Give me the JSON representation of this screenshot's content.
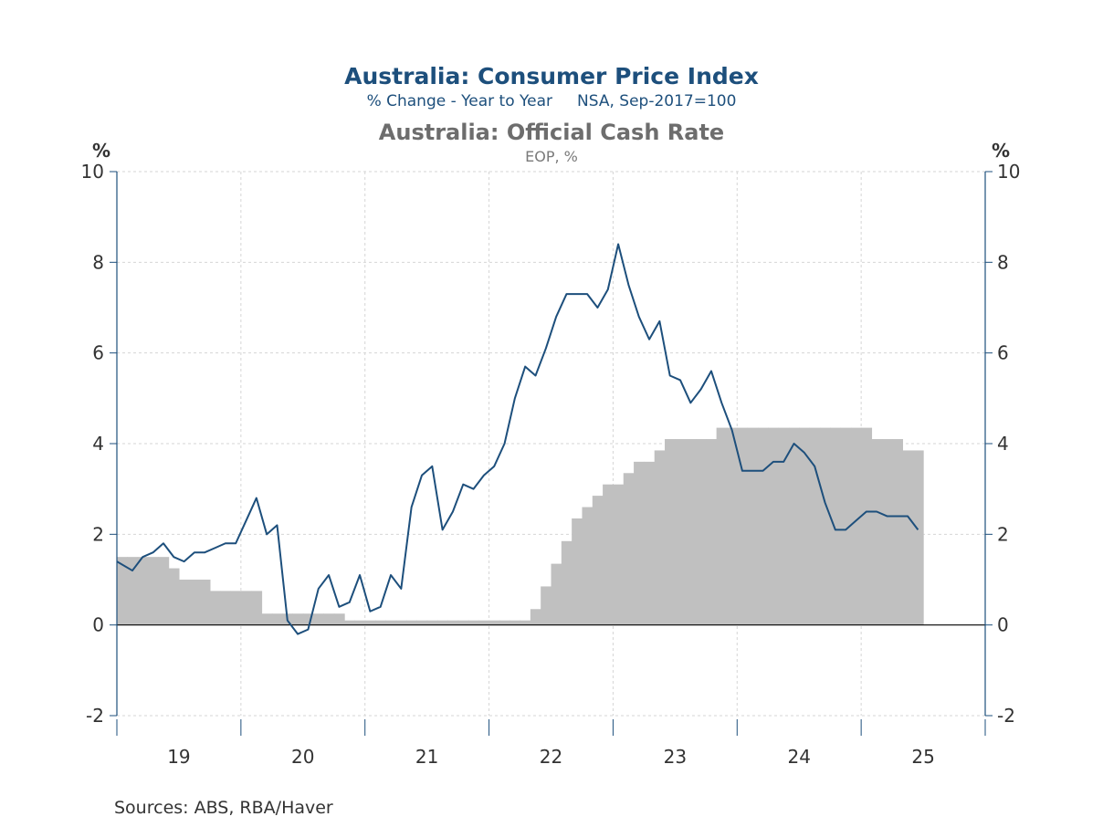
{
  "chart_data": {
    "type": "line",
    "title": "Australia: Consumer Price Index",
    "subtitle": "% Change - Year to Year     NSA, Sep-2017=100",
    "title2": "Australia: Official Cash Rate",
    "subtitle2": "EOP, %",
    "left_unit": "%",
    "right_unit": "%",
    "source": "Sources:  ABS, RBA/Haver",
    "ylim": [
      -2,
      10
    ],
    "yticks": [
      "-2",
      "0",
      "2",
      "4",
      "6",
      "8",
      "10"
    ],
    "x_categories": [
      "19",
      "20",
      "21",
      "22",
      "23",
      "24",
      "25"
    ],
    "grid": true,
    "colors": {
      "cpi_line": "#1d4f7c",
      "cash_rate_fill": "#c0c0c0",
      "title_blue": "#1d4f7c",
      "title_gray": "#6d6d6d",
      "axis": "#1d4f7c"
    },
    "series": [
      {
        "type": "line",
        "x": [
          "2019-01",
          "2019-02",
          "2019-03",
          "2019-04",
          "2019-05",
          "2019-06",
          "2019-07",
          "2019-08",
          "2019-09",
          "2019-10",
          "2019-11",
          "2019-12",
          "2020-01",
          "2020-02",
          "2020-03",
          "2020-04",
          "2020-05",
          "2020-06",
          "2020-07",
          "2020-08",
          "2020-09",
          "2020-10",
          "2020-11",
          "2020-12",
          "2021-01",
          "2021-02",
          "2021-03",
          "2021-04",
          "2021-05",
          "2021-06",
          "2021-07",
          "2021-08",
          "2021-09",
          "2021-10",
          "2021-11",
          "2021-12",
          "2022-01",
          "2022-02",
          "2022-03",
          "2022-04",
          "2022-05",
          "2022-06",
          "2022-07",
          "2022-08",
          "2022-09",
          "2022-10",
          "2022-11",
          "2022-12",
          "2023-01",
          "2023-02",
          "2023-03",
          "2023-04",
          "2023-05",
          "2023-06",
          "2023-07",
          "2023-08",
          "2023-09",
          "2023-10",
          "2023-11",
          "2023-12",
          "2024-01",
          "2024-02",
          "2024-03",
          "2024-04",
          "2024-05",
          "2024-06",
          "2024-07",
          "2024-08",
          "2024-09",
          "2024-10",
          "2024-11",
          "2024-12",
          "2025-01",
          "2025-02",
          "2025-03",
          "2025-04",
          "2025-05",
          "2025-06"
        ],
        "values": [
          1.4,
          1.2,
          1.5,
          1.6,
          1.8,
          1.5,
          1.4,
          1.6,
          1.6,
          1.7,
          1.8,
          1.8,
          2.3,
          2.8,
          2.0,
          2.2,
          0.1,
          -0.2,
          -0.1,
          0.8,
          1.1,
          0.4,
          0.5,
          1.1,
          0.3,
          0.4,
          1.1,
          0.8,
          2.6,
          3.3,
          3.5,
          2.1,
          2.5,
          3.1,
          3.0,
          3.3,
          3.5,
          4.0,
          5.0,
          5.7,
          5.5,
          6.1,
          6.8,
          7.3,
          7.3,
          7.3,
          7.0,
          7.4,
          8.4,
          7.5,
          6.8,
          6.3,
          6.7,
          5.5,
          5.4,
          4.9,
          5.2,
          5.6,
          4.9,
          4.3,
          3.4,
          3.4,
          3.4,
          3.6,
          3.6,
          4.0,
          3.8,
          3.5,
          2.7,
          2.1,
          2.1,
          2.3,
          2.5,
          2.5,
          2.4,
          2.4,
          2.4,
          2.1
        ]
      },
      {
        "type": "area-step",
        "x": [
          "2019-01",
          "2019-02",
          "2019-03",
          "2019-04",
          "2019-05",
          "2019-06",
          "2019-07",
          "2019-08",
          "2019-09",
          "2019-10",
          "2019-11",
          "2019-12",
          "2020-01",
          "2020-02",
          "2020-03",
          "2020-04",
          "2020-05",
          "2020-06",
          "2020-07",
          "2020-08",
          "2020-09",
          "2020-10",
          "2020-11",
          "2020-12",
          "2021-01",
          "2021-02",
          "2021-03",
          "2021-04",
          "2021-05",
          "2021-06",
          "2021-07",
          "2021-08",
          "2021-09",
          "2021-10",
          "2021-11",
          "2021-12",
          "2022-01",
          "2022-02",
          "2022-03",
          "2022-04",
          "2022-05",
          "2022-06",
          "2022-07",
          "2022-08",
          "2022-09",
          "2022-10",
          "2022-11",
          "2022-12",
          "2023-01",
          "2023-02",
          "2023-03",
          "2023-04",
          "2023-05",
          "2023-06",
          "2023-07",
          "2023-08",
          "2023-09",
          "2023-10",
          "2023-11",
          "2023-12",
          "2024-01",
          "2024-02",
          "2024-03",
          "2024-04",
          "2024-05",
          "2024-06",
          "2024-07",
          "2024-08",
          "2024-09",
          "2024-10",
          "2024-11",
          "2024-12",
          "2025-01",
          "2025-02",
          "2025-03",
          "2025-04",
          "2025-05",
          "2025-06"
        ],
        "values": [
          1.5,
          1.5,
          1.5,
          1.5,
          1.5,
          1.25,
          1.0,
          1.0,
          1.0,
          0.75,
          0.75,
          0.75,
          0.75,
          0.75,
          0.25,
          0.25,
          0.25,
          0.25,
          0.25,
          0.25,
          0.25,
          0.25,
          0.1,
          0.1,
          0.1,
          0.1,
          0.1,
          0.1,
          0.1,
          0.1,
          0.1,
          0.1,
          0.1,
          0.1,
          0.1,
          0.1,
          0.1,
          0.1,
          0.1,
          0.1,
          0.35,
          0.85,
          1.35,
          1.85,
          2.35,
          2.6,
          2.85,
          3.1,
          3.1,
          3.35,
          3.6,
          3.6,
          3.85,
          4.1,
          4.1,
          4.1,
          4.1,
          4.1,
          4.35,
          4.35,
          4.35,
          4.35,
          4.35,
          4.35,
          4.35,
          4.35,
          4.35,
          4.35,
          4.35,
          4.35,
          4.35,
          4.35,
          4.35,
          4.1,
          4.1,
          4.1,
          3.85,
          3.85
        ]
      }
    ]
  }
}
